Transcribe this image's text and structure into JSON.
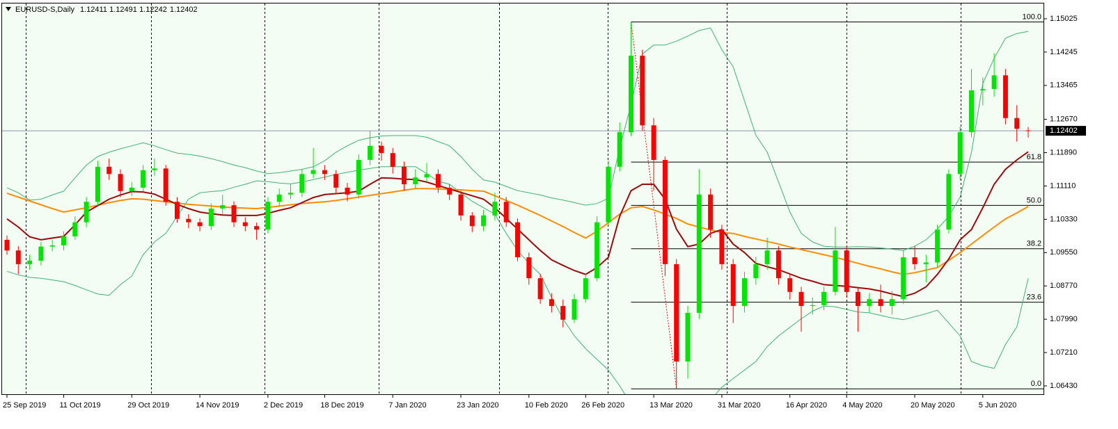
{
  "chart_data": {
    "type": "candlestick",
    "symbol": "EURUSD-S,Daily",
    "categories": [
      "25 Sep 2019",
      null,
      null,
      null,
      null,
      "11 Oct 2019",
      null,
      null,
      null,
      null,
      null,
      "29 Oct 2019",
      null,
      null,
      null,
      null,
      null,
      "14 Nov 2019",
      null,
      null,
      null,
      null,
      null,
      "2 Dec 2019",
      null,
      null,
      null,
      null,
      "18 Dec 2019",
      null,
      null,
      null,
      null,
      null,
      "7 Jan 2020",
      null,
      null,
      null,
      null,
      null,
      "23 Jan 2020",
      null,
      null,
      null,
      null,
      null,
      "10 Feb 2020",
      null,
      null,
      null,
      null,
      "26 Feb 2020",
      null,
      null,
      null,
      null,
      null,
      "13 Mar 2020",
      null,
      null,
      null,
      null,
      null,
      "31 Mar 2020",
      null,
      null,
      null,
      null,
      null,
      "16 Apr 2020",
      null,
      null,
      null,
      null,
      "4 May 2020",
      null,
      null,
      null,
      null,
      null,
      "20 May 2020",
      null,
      null,
      null,
      null,
      null,
      "5 Jun 2020",
      null,
      null,
      null,
      null
    ],
    "open": [
      1.0985,
      1.096,
      1.0928,
      1.0936,
      1.0969,
      1.0972,
      1.0993,
      1.1026,
      1.1074,
      1.1156,
      1.1139,
      1.1099,
      1.1107,
      1.1148,
      1.1152,
      1.1074,
      1.1034,
      1.1026,
      1.1017,
      1.1058,
      1.1066,
      1.1026,
      1.1017,
      1.1009,
      1.1074,
      1.1091,
      1.1095,
      1.1139,
      1.1148,
      1.1139,
      1.1107,
      1.1091,
      1.1172,
      1.1205,
      1.1188,
      1.1156,
      1.1115,
      1.1131,
      1.1139,
      1.1107,
      1.1091,
      1.1042,
      1.1017,
      1.1042,
      1.1074,
      1.1026,
      1.0944,
      1.0895,
      1.0846,
      1.083,
      1.0798,
      1.0846,
      1.0895,
      1.1026,
      1.1156,
      1.1237,
      1.1416,
      1.1253,
      1.1172,
      1.0928,
      1.07,
      1.0814,
      1.1091,
      1.1009,
      1.0928,
      1.083,
      1.0895,
      1.0928,
      1.096,
      1.0895,
      1.0863,
      1.083,
      1.0832,
      1.0863,
      1.096,
      1.0863,
      1.083,
      1.0846,
      1.083,
      1.0846,
      1.0944,
      1.0928,
      1.0932,
      1.1009,
      1.1139,
      1.1237,
      1.1335,
      1.1338,
      1.137,
      1.127,
      1.12411
    ],
    "high": [
      1.0995,
      1.097,
      1.095,
      1.098,
      1.0985,
      1.1005,
      1.104,
      1.1085,
      1.117,
      1.1175,
      1.115,
      1.112,
      1.116,
      1.1175,
      1.116,
      1.1085,
      1.1045,
      1.1035,
      1.107,
      1.109,
      1.1075,
      1.1038,
      1.1025,
      1.1085,
      1.1105,
      1.1115,
      1.115,
      1.12,
      1.116,
      1.1148,
      1.1118,
      1.1185,
      1.124,
      1.1215,
      1.12,
      1.1168,
      1.115,
      1.1165,
      1.115,
      1.1115,
      1.11,
      1.105,
      1.1055,
      1.1095,
      1.1085,
      1.1035,
      1.0955,
      1.0905,
      1.086,
      1.0845,
      1.0858,
      1.0905,
      1.104,
      1.117,
      1.126,
      1.1495,
      1.143,
      1.127,
      1.118,
      1.094,
      1.083,
      1.115,
      1.1105,
      1.102,
      1.094,
      1.091,
      1.0945,
      1.099,
      1.097,
      1.0905,
      1.0875,
      1.085,
      1.0875,
      1.1015,
      1.097,
      1.0875,
      1.086,
      1.088,
      1.0865,
      1.096,
      1.097,
      1.095,
      1.102,
      1.115,
      1.125,
      1.1385,
      1.1365,
      1.1422,
      1.1385,
      1.13,
      1.12491
    ],
    "low": [
      1.095,
      1.0905,
      1.0915,
      1.0925,
      1.0958,
      1.096,
      1.0985,
      1.1015,
      1.1065,
      1.1125,
      1.1085,
      1.1088,
      1.1098,
      1.1135,
      1.1065,
      1.1025,
      1.1012,
      1.1005,
      1.1008,
      1.1045,
      1.1015,
      1.1005,
      1.0985,
      1.1,
      1.1062,
      1.108,
      1.1085,
      1.113,
      1.1125,
      1.1095,
      1.1075,
      1.1082,
      1.116,
      1.117,
      1.114,
      1.11,
      1.1105,
      1.112,
      1.1095,
      1.1078,
      1.103,
      1.1003,
      1.1005,
      1.103,
      1.1015,
      1.0935,
      1.088,
      1.0835,
      1.0815,
      1.078,
      1.079,
      1.0838,
      1.0888,
      1.1018,
      1.1145,
      1.1228,
      1.124,
      1.11,
      1.09,
      1.0636,
      1.066,
      1.08,
      1.099,
      1.0915,
      1.079,
      1.0815,
      1.088,
      1.0915,
      1.088,
      1.0845,
      1.077,
      1.081,
      1.082,
      1.0855,
      1.085,
      1.077,
      1.0815,
      1.0815,
      1.081,
      1.0835,
      1.0915,
      1.0885,
      1.092,
      1.1,
      1.1125,
      1.1225,
      1.13,
      1.132,
      1.1255,
      1.1215,
      1.12242
    ],
    "close": [
      1.096,
      1.0928,
      1.0936,
      1.0969,
      1.0972,
      1.0993,
      1.1026,
      1.1074,
      1.1156,
      1.1139,
      1.1099,
      1.1107,
      1.1148,
      1.1152,
      1.1074,
      1.1034,
      1.1026,
      1.1017,
      1.1058,
      1.1066,
      1.1026,
      1.1017,
      1.1009,
      1.1074,
      1.1091,
      1.1095,
      1.1139,
      1.1148,
      1.1139,
      1.1107,
      1.1091,
      1.1172,
      1.1205,
      1.1188,
      1.1156,
      1.1115,
      1.1131,
      1.1139,
      1.1107,
      1.1091,
      1.1042,
      1.1017,
      1.1042,
      1.1074,
      1.1026,
      1.0944,
      1.0895,
      1.0846,
      1.083,
      1.0798,
      1.0846,
      1.0895,
      1.1026,
      1.1156,
      1.1237,
      1.1416,
      1.1253,
      1.1172,
      1.0928,
      1.07,
      1.0814,
      1.1091,
      1.1009,
      1.0928,
      1.083,
      1.0895,
      1.0928,
      1.096,
      1.0895,
      1.0863,
      1.083,
      1.0832,
      1.0863,
      1.096,
      1.0863,
      1.083,
      1.0846,
      1.083,
      1.0846,
      1.0944,
      1.0928,
      1.0932,
      1.1009,
      1.1139,
      1.1237,
      1.1335,
      1.1338,
      1.137,
      1.127,
      1.1245,
      1.12402
    ],
    "up_color": "#00e600",
    "down_color": "#ff0000",
    "indicators": [
      {
        "color": "#3cb371",
        "values": [
          1.1107,
          1.1095,
          1.1078,
          1.108,
          1.109,
          1.1099,
          1.113,
          1.116,
          1.118,
          1.119,
          1.1198,
          1.1205,
          1.1212,
          1.1205,
          1.1196,
          1.1188,
          1.1185,
          1.1181,
          1.1175,
          1.1168,
          1.116,
          1.1154,
          1.1146,
          1.114,
          1.1142,
          1.1146,
          1.115,
          1.1156,
          1.117,
          1.119,
          1.1205,
          1.1218,
          1.1224,
          1.1228,
          1.1229,
          1.1229,
          1.1229,
          1.1225,
          1.1215,
          1.1205,
          1.118,
          1.115,
          1.1125,
          1.112,
          1.111,
          1.11,
          1.1095,
          1.109,
          1.1083,
          1.1078,
          1.1072,
          1.1066,
          1.107,
          1.1082,
          1.12,
          1.1302,
          1.142,
          1.1441,
          1.1441,
          1.145,
          1.1462,
          1.1475,
          1.1481,
          1.143,
          1.139,
          1.131,
          1.123,
          1.119,
          1.112,
          1.105,
          1.1,
          1.098,
          1.097,
          1.0968,
          1.0968,
          1.0969,
          1.0968,
          1.0966,
          1.0963,
          1.096,
          1.097,
          1.0985,
          1.101,
          1.104,
          1.1085,
          1.119,
          1.1351,
          1.141,
          1.1457,
          1.1468,
          1.1473
        ]
      },
      {
        "color": "#3cb371",
        "values": [
          1.0911,
          1.0903,
          1.0897,
          1.0895,
          1.0891,
          1.0887,
          1.0878,
          1.0868,
          1.0858,
          1.0855,
          1.088,
          1.09,
          1.095,
          1.098,
          1.1,
          1.104,
          1.108,
          1.1095,
          1.1098,
          1.11,
          1.1108,
          1.1115,
          1.1123,
          1.1121,
          1.1118,
          1.1116,
          1.112,
          1.1126,
          1.1132,
          1.1138,
          1.1143,
          1.1148,
          1.1152,
          1.1156,
          1.1156,
          1.1156,
          1.1156,
          1.114,
          1.1122,
          1.1115,
          1.1095,
          1.1075,
          1.106,
          1.1045,
          1.1,
          1.096,
          1.093,
          1.0904,
          1.085,
          1.08,
          1.076,
          1.073,
          1.0705,
          1.068,
          1.0643,
          1.06,
          1.056,
          1.0535,
          1.052,
          1.051,
          1.053,
          1.057,
          1.061,
          1.064,
          1.066,
          1.068,
          1.07,
          1.0735,
          1.076,
          1.078,
          1.08,
          1.0818,
          1.083,
          1.0828,
          1.0822,
          1.0816,
          1.0814,
          1.0808,
          1.0802,
          1.0798,
          1.0805,
          1.0812,
          1.082,
          1.079,
          1.076,
          1.07,
          1.069,
          1.0684,
          1.074,
          1.0781,
          1.0895
        ]
      },
      {
        "color": "#ff8c00",
        "values": [
          1.1094,
          1.1085,
          1.1076,
          1.1067,
          1.1058,
          1.105,
          1.1055,
          1.106,
          1.1066,
          1.1072,
          1.1077,
          1.1081,
          1.108,
          1.1077,
          1.1074,
          1.1071,
          1.1068,
          1.1066,
          1.1064,
          1.1062,
          1.106,
          1.1059,
          1.1058,
          1.1061,
          1.1064,
          1.1067,
          1.107,
          1.1072,
          1.1074,
          1.1077,
          1.1081,
          1.1085,
          1.1089,
          1.1093,
          1.1097,
          1.1101,
          1.1105,
          1.1105,
          1.1104,
          1.1103,
          1.1102,
          1.11,
          1.1099,
          1.1088,
          1.1077,
          1.1066,
          1.1054,
          1.1042,
          1.1029,
          1.1016,
          1.1002,
          1.0989,
          1.1005,
          1.1025,
          1.1045,
          1.106,
          1.1063,
          1.1055,
          1.1045,
          1.1035,
          1.1022,
          1.1015,
          1.1008,
          1.1002,
          1.1,
          1.0993,
          1.0987,
          1.0981,
          1.0975,
          1.0968,
          1.0962,
          1.0956,
          1.095,
          1.0944,
          1.0937,
          1.093,
          1.0923,
          1.0917,
          1.091,
          1.0904,
          1.0908,
          1.0914,
          1.092,
          1.0937,
          1.0955,
          1.0975,
          1.0995,
          1.1015,
          1.1034,
          1.1048,
          1.1063
        ]
      },
      {
        "color": "#9b0a0a",
        "values": [
          1.1034,
          1.1015,
          1.0992,
          1.0985,
          1.0989,
          1.0993,
          1.102,
          1.105,
          1.1065,
          1.108,
          1.109,
          1.1098,
          1.1097,
          1.1092,
          1.108,
          1.1068,
          1.1058,
          1.105,
          1.1046,
          1.1043,
          1.1042,
          1.1042,
          1.1042,
          1.1047,
          1.1054,
          1.106,
          1.1072,
          1.1084,
          1.1091,
          1.1093,
          1.1095,
          1.1099,
          1.1115,
          1.113,
          1.1129,
          1.1127,
          1.1126,
          1.112,
          1.1112,
          1.1104,
          1.1096,
          1.1088,
          1.108,
          1.106,
          1.1035,
          1.101,
          1.0985,
          1.096,
          1.0938,
          1.0925,
          1.0913,
          1.0904,
          1.092,
          1.0944,
          1.104,
          1.11,
          1.1115,
          1.1115,
          1.108,
          1.101,
          1.0969,
          1.0975,
          1.1,
          1.1009,
          1.0975,
          1.0955,
          1.093,
          1.0922,
          1.0915,
          1.0905,
          1.0895,
          1.0888,
          1.088,
          1.0878,
          1.0876,
          1.0873,
          1.087,
          1.0865,
          1.0858,
          1.0852,
          1.086,
          1.0875,
          1.0904,
          1.094,
          1.0985,
          1.1009,
          1.106,
          1.1115,
          1.115,
          1.1172,
          1.1191
        ]
      }
    ],
    "fib": {
      "color": "#000000",
      "levels": [
        {
          "value": 100,
          "label": "100.0"
        },
        61.8,
        {
          "value": 50,
          "label": "50.0"
        },
        38.2,
        23.6,
        {
          "value": 0,
          "label": "0.0"
        }
      ],
      "prices": [
        1.1495,
        1.1167,
        1.10655,
        1.0964,
        1.0839,
        1.0636
      ]
    },
    "ylim": [
      1.06218,
      1.15399
    ],
    "yticks": [
      1.15025,
      1.14245,
      1.13465,
      {
        "value": 1.1267,
        "label": "1.12670"
      },
      {
        "value": 1.1189,
        "label": "1.11890"
      },
      {
        "value": 1.1111,
        "label": "1.11110"
      },
      {
        "value": 1.1033,
        "label": "1.10330"
      },
      {
        "value": 1.0955,
        "label": "1.09550"
      },
      {
        "value": 1.0877,
        "label": "1.08770"
      },
      {
        "value": 1.0799,
        "label": "1.07990"
      },
      {
        "value": 1.0721,
        "label": "1.07210"
      },
      {
        "value": 1.0643,
        "label": "1.06430"
      }
    ]
  }
}
